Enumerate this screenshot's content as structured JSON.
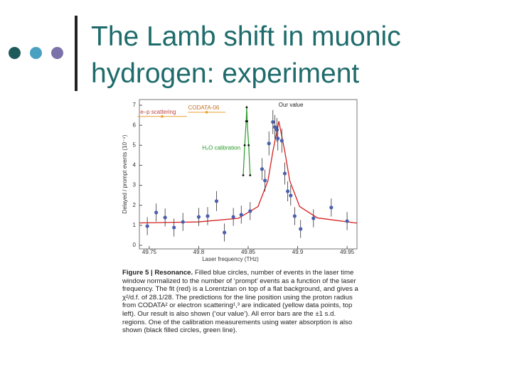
{
  "title": [
    "The Lamb shift in muonic",
    "hydrogen: experiment"
  ],
  "chart_data": {
    "type": "scatter",
    "xlabel": "Laser frequency (THz)",
    "ylabel": "Delayed / prompt events (10⁻⁴)",
    "xlim": [
      49.74,
      49.96
    ],
    "ylim": [
      0,
      7
    ],
    "xticks": [
      49.75,
      49.8,
      49.85,
      49.9,
      49.95
    ],
    "yticks": [
      0,
      1,
      2,
      3,
      4,
      5,
      6,
      7
    ],
    "color": "#4a5fb0",
    "x": [
      49.748,
      49.757,
      49.766,
      49.775,
      49.784,
      49.8,
      49.809,
      49.818,
      49.826,
      49.835,
      49.843,
      49.852,
      49.864,
      49.867,
      49.871,
      49.875,
      49.877,
      49.879,
      49.88,
      49.884,
      49.887,
      49.89,
      49.893,
      49.897,
      49.903,
      49.916,
      49.934,
      49.95
    ],
    "values": [
      0.96,
      1.64,
      1.39,
      0.89,
      1.17,
      1.42,
      1.46,
      2.21,
      0.64,
      1.42,
      1.53,
      1.71,
      3.81,
      3.24,
      5.09,
      6.16,
      5.91,
      5.77,
      5.34,
      5.23,
      3.59,
      2.7,
      2.49,
      1.46,
      0.82,
      1.35,
      1.89,
      1.21
    ],
    "errors": [
      0.45,
      0.45,
      0.45,
      0.45,
      0.45,
      0.45,
      0.45,
      0.5,
      0.45,
      0.45,
      0.45,
      0.45,
      0.55,
      0.55,
      0.6,
      0.6,
      0.6,
      0.6,
      0.6,
      0.6,
      0.55,
      0.5,
      0.5,
      0.45,
      0.45,
      0.45,
      0.45,
      0.45
    ],
    "fit": {
      "color": "#d62020",
      "x": [
        49.74,
        49.8,
        49.84,
        49.86,
        49.87,
        49.875,
        49.881,
        49.887,
        49.892,
        49.902,
        49.92,
        49.96
      ],
      "y": [
        1.12,
        1.17,
        1.35,
        1.94,
        3.23,
        4.7,
        6.2,
        4.7,
        3.23,
        1.94,
        1.37,
        1.11
      ]
    },
    "calibration": {
      "label": "H₂O calibration",
      "color": "#2a9a2a",
      "x": [
        49.845,
        49.8465,
        49.848,
        49.8485,
        49.849,
        49.8505,
        49.852
      ],
      "y": [
        3.5,
        5.0,
        6.2,
        6.9,
        6.2,
        5.0,
        3.5
      ]
    },
    "reference_points": [
      {
        "name": "CODATA-06",
        "color": "#e8a030",
        "x": 49.808,
        "y": 6.65,
        "xerr": 0.019
      },
      {
        "name": "e–p scattering",
        "color": "#e8a030",
        "x": 49.763,
        "y": 6.44,
        "xerr": 0.025
      }
    ],
    "annotation": "Our value"
  },
  "caption": {
    "label": "Figure 5 | Resonance.",
    "text": "Filled blue circles, number of events in the laser time window normalized to the number of ‘prompt’ events as a function of the laser frequency. The fit (red) is a Lorentzian on top of a flat background, and gives a χ²/d.f. of 28.1/28. The predictions for the line position using the proton radius from CODATA² or electron scattering¹,³ are indicated (yellow data points, top left). Our result is also shown (‘our value’). All error bars are the ±1 s.d. regions. One of the calibration measurements using water absorption is also shown (black filled circles, green line)."
  }
}
